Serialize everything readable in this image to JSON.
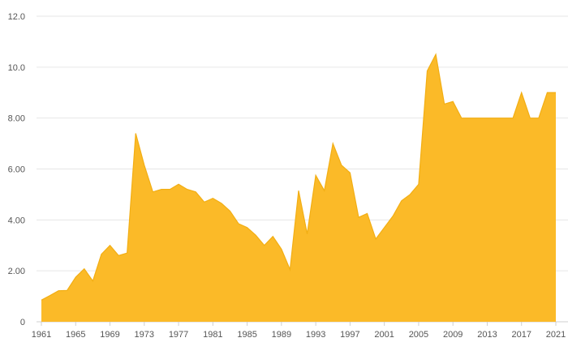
{
  "chart_data": {
    "type": "area",
    "title": "",
    "xlabel": "",
    "ylabel": "",
    "ylim": [
      0,
      12
    ],
    "grid": true,
    "legend": "none",
    "y_ticks": [
      {
        "value": 0,
        "label": "0"
      },
      {
        "value": 2,
        "label": "2.00"
      },
      {
        "value": 4,
        "label": "4.00"
      },
      {
        "value": 6,
        "label": "6.00"
      },
      {
        "value": 8,
        "label": "8.00"
      },
      {
        "value": 10,
        "label": "10.0"
      },
      {
        "value": 12,
        "label": "12.0"
      }
    ],
    "x_ticks": [
      {
        "value": 1961,
        "label": "1961"
      },
      {
        "value": 1965,
        "label": "1965"
      },
      {
        "value": 1969,
        "label": "1969"
      },
      {
        "value": 1973,
        "label": "1973"
      },
      {
        "value": 1977,
        "label": "1977"
      },
      {
        "value": 1981,
        "label": "1981"
      },
      {
        "value": 1985,
        "label": "1985"
      },
      {
        "value": 1989,
        "label": "1989"
      },
      {
        "value": 1993,
        "label": "1993"
      },
      {
        "value": 1997,
        "label": "1997"
      },
      {
        "value": 2001,
        "label": "2001"
      },
      {
        "value": 2005,
        "label": "2005"
      },
      {
        "value": 2009,
        "label": "2009"
      },
      {
        "value": 2013,
        "label": "2013"
      },
      {
        "value": 2017,
        "label": "2017"
      },
      {
        "value": 2021,
        "label": "2021"
      }
    ],
    "x": [
      1961,
      1962,
      1963,
      1964,
      1965,
      1966,
      1967,
      1968,
      1969,
      1970,
      1971,
      1972,
      1973,
      1974,
      1975,
      1976,
      1977,
      1978,
      1979,
      1980,
      1981,
      1982,
      1983,
      1984,
      1985,
      1986,
      1987,
      1988,
      1989,
      1990,
      1991,
      1992,
      1993,
      1994,
      1995,
      1996,
      1997,
      1998,
      1999,
      2000,
      2001,
      2002,
      2003,
      2004,
      2005,
      2006,
      2007,
      2008,
      2009,
      2010,
      2011,
      2012,
      2013,
      2014,
      2015,
      2016,
      2017,
      2018,
      2019,
      2020,
      2021
    ],
    "series": [
      {
        "color": "#FBBA28",
        "line_color": "#F2AE14",
        "values": [
          0.85,
          1.03,
          1.22,
          1.23,
          1.75,
          2.08,
          1.6,
          2.65,
          3.0,
          2.6,
          2.7,
          7.4,
          6.15,
          5.1,
          5.2,
          5.2,
          5.4,
          5.2,
          5.1,
          4.7,
          4.85,
          4.65,
          4.35,
          3.85,
          3.7,
          3.4,
          3.0,
          3.35,
          2.85,
          2.05,
          5.15,
          3.45,
          5.75,
          5.15,
          7.0,
          6.15,
          5.85,
          4.1,
          4.25,
          3.25,
          3.7,
          4.15,
          4.75,
          5.0,
          5.4,
          9.85,
          10.5,
          8.55,
          8.65,
          8.0,
          8.0,
          8.0,
          8.0,
          8.0,
          8.0,
          8.0,
          9.0,
          8.0,
          8.0,
          9.0,
          9.0
        ]
      }
    ]
  }
}
